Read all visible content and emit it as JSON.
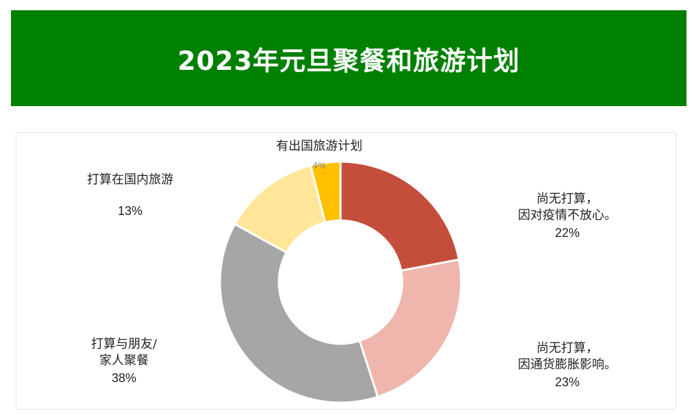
{
  "title": "2023年元旦聚餐和旅游计划",
  "colors": {
    "banner": "#008000",
    "slice_1": "#c44e3b",
    "slice_2": "#efb6ae",
    "slice_3": "#a6a6a6",
    "slice_4": "#ffe699",
    "slice_5": "#ffc000"
  },
  "chart_data": {
    "type": "pie",
    "variant": "doughnut",
    "title": "2023年元旦聚餐和旅游计划",
    "slices": [
      {
        "label_lines": [
          "尚无打算，",
          "因对疫情不放心。"
        ],
        "value": 22,
        "pct_label": "22%",
        "color": "#c44e3b"
      },
      {
        "label_lines": [
          "尚无打算，",
          "因通货膨胀影响。"
        ],
        "value": 23,
        "pct_label": "23%",
        "color": "#efb6ae"
      },
      {
        "label_lines": [
          "打算与朋友/",
          "家人聚餐"
        ],
        "value": 38,
        "pct_label": "38%",
        "color": "#a6a6a6"
      },
      {
        "label_lines": [
          "打算在国内旅游"
        ],
        "value": 13,
        "pct_label": "13%",
        "color": "#ffe699"
      },
      {
        "label_lines": [
          "有出国旅游计划"
        ],
        "value": 4,
        "pct_label": "4%",
        "color": "#ffc000"
      }
    ]
  }
}
